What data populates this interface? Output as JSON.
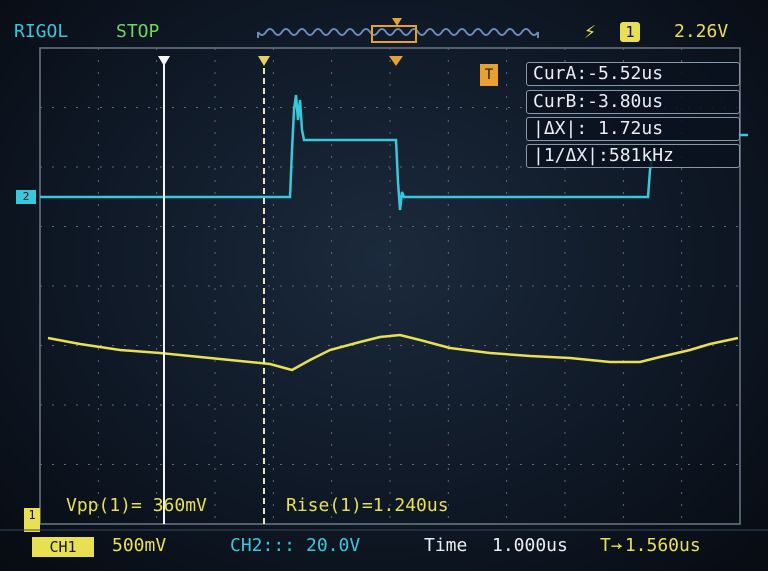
{
  "header": {
    "brand": "RIGOL",
    "run_state": "STOP",
    "trigger_source": "1",
    "trigger_level": "2.26V",
    "trigger_edge_icon": "rising-edge-icon"
  },
  "cursors": {
    "cur_a": "CurA:-5.52us",
    "cur_b": "CurB:-3.80us",
    "delta_x": "|ΔX|: 1.72us",
    "inv_delta_x": "|1/ΔX|:581kHz"
  },
  "measurements": {
    "vpp": "Vpp(1)= 360mV",
    "rise": "Rise(1)=1.240us"
  },
  "footer": {
    "ch1_label": "CH1",
    "ch1_scale": "500mV",
    "ch2_label": "CH2:::",
    "ch2_scale": "20.0V",
    "time_label": "Time",
    "timebase": "1.000us",
    "trigger_position": "-1.560us"
  },
  "markers": {
    "ch2": "2",
    "ch1": "1",
    "trigger": "T"
  },
  "colors": {
    "ch1": "#e8e050",
    "ch2": "#38c8dc",
    "status": "#6cd860",
    "trigger_marker": "#e8a030"
  }
}
